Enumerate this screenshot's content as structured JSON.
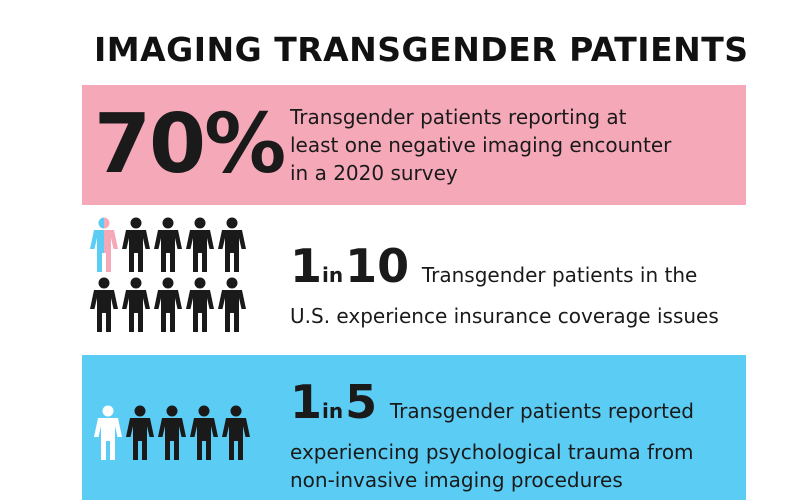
{
  "header": {
    "title": "IMAGING TRANSGENDER PATIENTS"
  },
  "sections": [
    {
      "stat": "70%",
      "lines": [
        "Transgender patients reporting at",
        "least one negative imaging encounter",
        "in a 2020 survey"
      ]
    },
    {
      "stat_parts": [
        "1",
        "in",
        "10"
      ],
      "lines": [
        "Transgender patients in the",
        "U.S. experience insurance coverage issues"
      ]
    },
    {
      "stat_parts": [
        "1",
        "in",
        "5"
      ],
      "lines": [
        "Transgender patients reported",
        "experiencing psychological trauma from",
        "non-invasive imaging procedures"
      ]
    }
  ]
}
